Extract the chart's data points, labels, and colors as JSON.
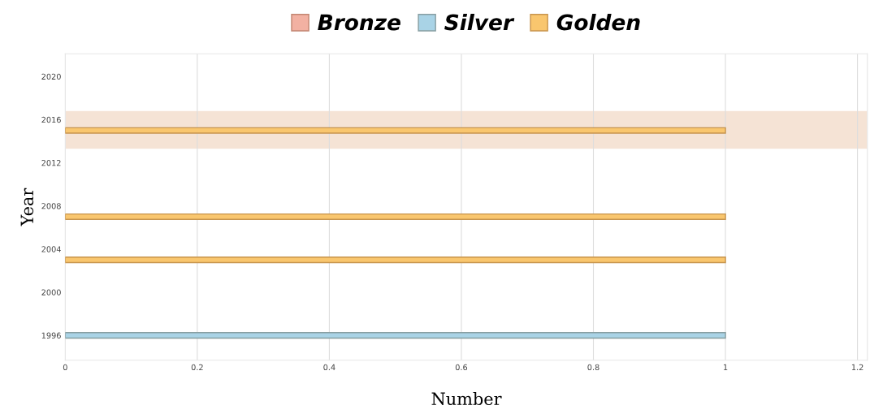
{
  "chart_data": {
    "type": "bar",
    "orientation": "horizontal",
    "xlabel": "Number",
    "ylabel": "Year",
    "series": [
      {
        "name": "Bronze",
        "color": "#f2b1a2"
      },
      {
        "name": "Silver",
        "color": "#a9d3e6",
        "x": [
          1996
        ],
        "values": [
          1
        ]
      },
      {
        "name": "Golden",
        "color": "#f9c66e",
        "x": [
          2003,
          2007,
          2015
        ],
        "values": [
          1,
          1,
          1
        ]
      }
    ],
    "xlim": [
      0,
      1.215
    ],
    "xticks": [
      0,
      0.2,
      0.4,
      0.6,
      0.8,
      1,
      1.2
    ],
    "ylim": [
      1993.7,
      2022.1
    ],
    "yticks": [
      1996,
      2000,
      2004,
      2008,
      2012,
      2016,
      2020
    ],
    "bands": [
      {
        "axis": "y",
        "from": 2013.3,
        "to": 2016.8,
        "color": "#f3dccb"
      }
    ],
    "grid": "x",
    "legend": "top"
  }
}
